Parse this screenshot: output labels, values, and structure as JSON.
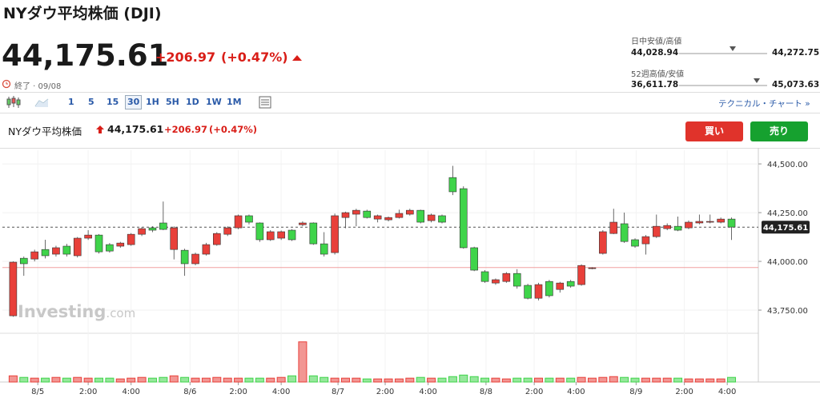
{
  "header": {
    "title": "NYダウ平均株価 (DJI)",
    "price": "44,175.61",
    "change": "+206.97",
    "change_pct": "(+0.47%)",
    "status": "終了 · 09/08"
  },
  "ranges": [
    {
      "label": "日中安値/高値",
      "low": "44,028.94",
      "high": "44,272.75"
    },
    {
      "label": "52週高値/安値",
      "low": "36,611.78",
      "high": "45,073.63"
    }
  ],
  "toolbar": {
    "intervals": [
      "1",
      "5",
      "15",
      "30",
      "1H",
      "5H",
      "1D",
      "1W",
      "1M"
    ],
    "selected": "30",
    "technical": "テクニカル・チャート »"
  },
  "chart_header": {
    "name": "NYダウ平均株価",
    "price": "44,175.61",
    "change": "+206.97",
    "change_pct": "(+0.47%)"
  },
  "buttons": {
    "buy": "買い",
    "sell": "売り"
  },
  "chart_data": {
    "type": "candlestick",
    "watermark": [
      "Investing",
      ".com"
    ],
    "up_color": "#3fd44a",
    "down_color": "#e8403a",
    "open": [
      43996,
      43988,
      44049,
      44029,
      44070,
      44037,
      44119,
      44135,
      44049,
      44053,
      44094,
      44139,
      44168,
      44160,
      44164,
      44172,
      43988,
      44037,
      44086,
      44143,
      44172,
      44234,
      44201,
      44111,
      44152,
      44152,
      44111,
      44197,
      44090,
      44037,
      44234,
      44250,
      44262,
      44225,
      44234,
      44225,
      44246,
      44262,
      44201,
      44238,
      44201,
      44357,
      44070,
      43955,
      43897,
      43906,
      43938,
      43873,
      43811,
      43881,
      43824,
      43889,
      43873,
      43979,
      43967,
      44152,
      44201,
      44102,
      44078,
      44127,
      44180,
      44184,
      44160,
      44201,
      44205,
      44205,
      44217,
      44176
    ],
    "high": [
      44000,
      44025,
      44060,
      44111,
      44080,
      44090,
      44125,
      44160,
      44140,
      44094,
      44100,
      44145,
      44175,
      44180,
      44307,
      44180,
      44065,
      44045,
      44095,
      44150,
      44180,
      44240,
      44240,
      44200,
      44160,
      44158,
      44165,
      44205,
      44200,
      44150,
      44245,
      44255,
      44270,
      44265,
      44240,
      44230,
      44265,
      44270,
      44265,
      44245,
      44240,
      44490,
      44385,
      44075,
      43955,
      43912,
      43945,
      43960,
      43885,
      43890,
      43905,
      43895,
      43905,
      43985,
      43970,
      44160,
      44270,
      44250,
      44118,
      44135,
      44240,
      44195,
      44230,
      44210,
      44240,
      44240,
      44225,
      44225
    ],
    "low": [
      43716,
      43926,
      44000,
      44015,
      44025,
      44025,
      44020,
      44110,
      44040,
      44045,
      44070,
      44080,
      44130,
      44150,
      44160,
      44010,
      43926,
      43980,
      44030,
      44080,
      44130,
      44165,
      44190,
      44100,
      44105,
      44110,
      44105,
      44180,
      44085,
      44025,
      44035,
      44170,
      44180,
      44220,
      44200,
      44205,
      44220,
      44235,
      44195,
      44200,
      44195,
      44340,
      44065,
      43950,
      43890,
      43880,
      43890,
      43860,
      43805,
      43800,
      43815,
      43840,
      43865,
      43875,
      43960,
      44035,
      44140,
      44095,
      44070,
      44035,
      44120,
      44160,
      44155,
      44165,
      44190,
      44195,
      44195,
      44110
    ],
    "close": [
      43721,
      44016,
      44012,
      44061,
      44037,
      44078,
      44029,
      44119,
      44135,
      44086,
      44078,
      44086,
      44139,
      44172,
      44197,
      44061,
      44057,
      43988,
      44037,
      44086,
      44139,
      44172,
      44234,
      44197,
      44111,
      44119,
      44160,
      44188,
      44197,
      44090,
      44045,
      44225,
      44242,
      44258,
      44217,
      44213,
      44225,
      44242,
      44262,
      44209,
      44234,
      44430,
      44373,
      44070,
      43947,
      43889,
      43897,
      43938,
      43877,
      43811,
      43897,
      43856,
      43897,
      43881,
      43963,
      44041,
      44143,
      44193,
      44111,
      44090,
      44127,
      44168,
      44180,
      44172,
      44197,
      44201,
      44201,
      44217
    ],
    "volume": [
      8,
      6,
      5,
      5,
      6,
      5,
      6,
      5,
      5,
      5,
      4,
      5,
      6,
      5,
      6,
      8,
      6,
      5,
      5,
      6,
      5,
      5,
      5,
      5,
      5,
      6,
      8,
      52,
      8,
      6,
      5,
      5,
      5,
      4,
      4,
      4,
      4,
      5,
      6,
      5,
      5,
      7,
      9,
      7,
      5,
      5,
      4,
      5,
      5,
      5,
      5,
      5,
      5,
      6,
      5,
      6,
      7,
      6,
      5,
      5,
      5,
      5,
      5,
      4,
      4,
      4,
      4,
      6
    ],
    "volume_lim": [
      0,
      60
    ],
    "ylim": [
      43660,
      44570
    ],
    "yticks": [
      {
        "value": 44500,
        "label": "44,500.00"
      },
      {
        "value": 44250,
        "label": "44,250.00"
      },
      {
        "value": 44000,
        "label": "44,000.00"
      },
      {
        "value": 43750,
        "label": "43,750.00"
      }
    ],
    "xlim": [
      -1,
      69.5
    ],
    "xticks": [
      {
        "value": 2.3,
        "label": "8/5"
      },
      {
        "value": 7,
        "label": "2:00"
      },
      {
        "value": 11,
        "label": "4:00"
      },
      {
        "value": 16.5,
        "label": "8/6"
      },
      {
        "value": 21,
        "label": "2:00"
      },
      {
        "value": 25,
        "label": "4:00"
      },
      {
        "value": 30.3,
        "label": "8/7"
      },
      {
        "value": 34.7,
        "label": "2:00"
      },
      {
        "value": 38.7,
        "label": "4:00"
      },
      {
        "value": 44.1,
        "label": "8/8"
      },
      {
        "value": 48.6,
        "label": "2:00"
      },
      {
        "value": 52.5,
        "label": "4:00"
      },
      {
        "value": 58.1,
        "label": "8/9"
      },
      {
        "value": 62.6,
        "label": "2:00"
      },
      {
        "value": 66.6,
        "label": "4:00"
      }
    ],
    "prev_close": 43968.64,
    "last": {
      "value": 44175.61,
      "label": "44,175.61"
    },
    "grid": true
  }
}
